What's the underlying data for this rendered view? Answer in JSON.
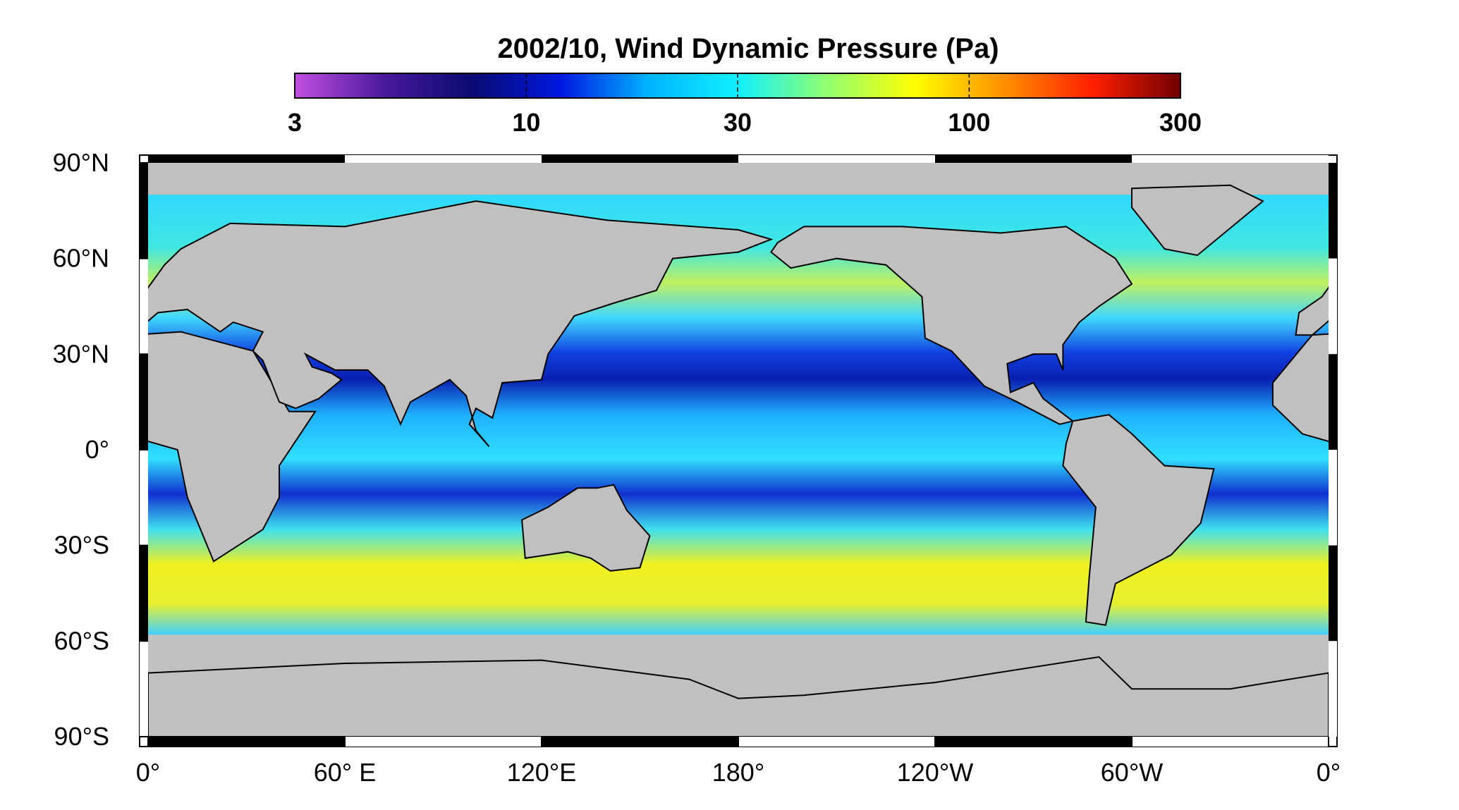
{
  "map": {
    "title": "2002/10, Wind Dynamic Pressure (Pa)",
    "colorbar": {
      "scale": "log",
      "lim": [
        3,
        300
      ],
      "ticks": [
        3,
        10,
        30,
        100,
        300
      ],
      "colors": [
        "#c24fe0",
        "#4a1a9e",
        "#0a0a70",
        "#0018e0",
        "#00b4ff",
        "#10f0ff",
        "#90ff70",
        "#ffff00",
        "#ff9000",
        "#ff2000",
        "#700000"
      ]
    },
    "latitude_ticks": [
      {
        "value": 90,
        "label": "90°N"
      },
      {
        "value": 60,
        "label": "60°N"
      },
      {
        "value": 30,
        "label": "30°N"
      },
      {
        "value": 0,
        "label": "0°"
      },
      {
        "value": -30,
        "label": "30°S"
      },
      {
        "value": -60,
        "label": "60°S"
      },
      {
        "value": -90,
        "label": "90°S"
      }
    ],
    "longitude_ticks": [
      {
        "value": 0,
        "label": "0°"
      },
      {
        "value": 60,
        "label": "60° E"
      },
      {
        "value": 120,
        "label": "120°E"
      },
      {
        "value": 180,
        "label": "180°"
      },
      {
        "value": 240,
        "label": "120°W"
      },
      {
        "value": 300,
        "label": "60°W"
      },
      {
        "value": 360,
        "label": "0°"
      }
    ]
  }
}
